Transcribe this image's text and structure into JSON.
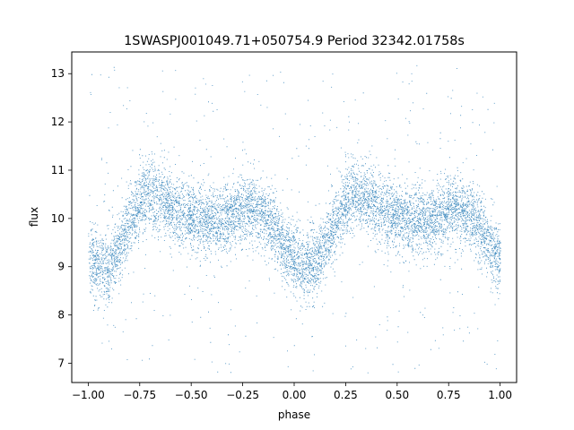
{
  "chart_data": {
    "type": "scatter",
    "title": "1SWASPJ001049.71+050754.9 Period 32342.01758s",
    "xlabel": "phase",
    "ylabel": "flux",
    "xlim": [
      -1.08,
      1.08
    ],
    "ylim": [
      6.6,
      13.45
    ],
    "xticks": [
      -1.0,
      -0.75,
      -0.5,
      -0.25,
      0.0,
      0.25,
      0.5,
      0.75,
      1.0
    ],
    "xtick_labels": [
      "−1.00",
      "−0.75",
      "−0.50",
      "−0.25",
      "0.00",
      "0.25",
      "0.50",
      "0.75",
      "1.00"
    ],
    "yticks": [
      7,
      8,
      9,
      10,
      11,
      12,
      13
    ],
    "ytick_labels": [
      "7",
      "8",
      "9",
      "10",
      "11",
      "12",
      "13"
    ],
    "grid": false,
    "marker_color": "#1f77b4",
    "profile": {
      "description_of_values": "approximate median flux vs phase (light curve is periodic, repeated over two cycles)",
      "phase": [
        0.0,
        0.05,
        0.1,
        0.15,
        0.2,
        0.25,
        0.3,
        0.35,
        0.4,
        0.45,
        0.5,
        0.55,
        0.6,
        0.65,
        0.7,
        0.75,
        0.8,
        0.85,
        0.9,
        0.95,
        1.0
      ],
      "flux": [
        9.15,
        9.0,
        9.05,
        9.4,
        9.95,
        10.35,
        10.55,
        10.45,
        10.25,
        10.15,
        10.05,
        9.95,
        9.95,
        9.95,
        10.05,
        10.2,
        10.25,
        10.1,
        9.8,
        9.45,
        9.15
      ]
    },
    "scatter_sigma": 0.35,
    "outlier_range": [
      6.8,
      13.2
    ]
  }
}
